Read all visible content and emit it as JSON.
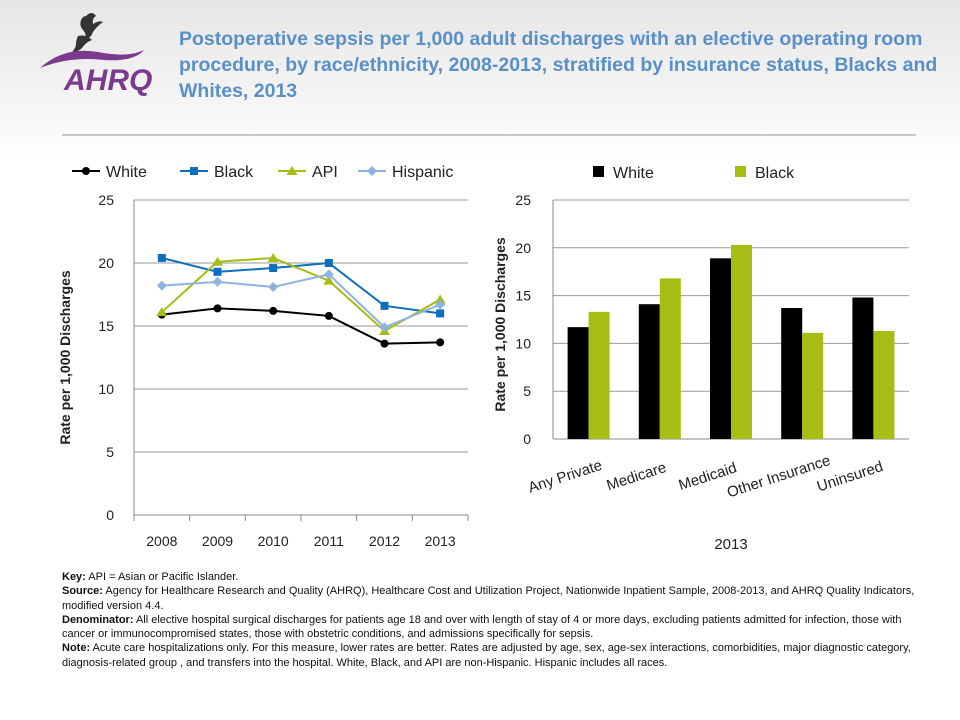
{
  "header": {
    "title": "Postoperative sepsis per 1,000 adult discharges with an elective operating room procedure, by race/ethnicity, 2008-2013, stratified by insurance status, Blacks and Whites, 2013",
    "logo_text": "AHRQ"
  },
  "colors": {
    "title": "#5a8fc8",
    "white_series": "#000000",
    "black_series": "#0b6fbb",
    "api_series": "#a7bd14",
    "hispanic_series": "#8fb3e0",
    "logo": "#7a3b8f"
  },
  "chart_data": [
    {
      "type": "line",
      "x": [
        "2008",
        "2009",
        "2010",
        "2011",
        "2012",
        "2013"
      ],
      "series": [
        {
          "name": "White",
          "marker": "circle",
          "values": [
            15.9,
            16.4,
            16.2,
            15.8,
            13.6,
            13.7
          ]
        },
        {
          "name": "Black",
          "marker": "square",
          "values": [
            20.4,
            19.3,
            19.6,
            20.0,
            16.6,
            16.0
          ]
        },
        {
          "name": "API",
          "marker": "triangle",
          "values": [
            16.1,
            20.1,
            20.4,
            18.6,
            14.6,
            17.1
          ]
        },
        {
          "name": "Hispanic",
          "marker": "diamond",
          "values": [
            18.2,
            18.5,
            18.1,
            19.1,
            14.9,
            16.7
          ]
        }
      ],
      "ylabel": "Rate per 1,000 Discharges",
      "ylim": [
        0,
        25
      ],
      "yticks": [
        "0",
        "5",
        "10",
        "15",
        "20",
        "25"
      ],
      "grid": true,
      "legend": "top"
    },
    {
      "type": "bar",
      "categories": [
        "Any Private",
        "Medicare",
        "Medicaid",
        "Other Insurance",
        "Uninsured"
      ],
      "series": [
        {
          "name": "White",
          "values": [
            11.7,
            14.1,
            18.9,
            13.7,
            14.8
          ]
        },
        {
          "name": "Black",
          "values": [
            13.3,
            16.8,
            20.3,
            11.1,
            11.3
          ]
        }
      ],
      "xlabel": "2013",
      "ylabel": "Rate per 1,000 Discharges",
      "ylim": [
        0,
        25
      ],
      "yticks": [
        "0",
        "5",
        "10",
        "15",
        "20",
        "25"
      ],
      "grid": true,
      "legend": "top"
    }
  ],
  "notes": {
    "key_label": "Key:",
    "key_text": " API = Asian or Pacific Islander.",
    "source_label": "Source:",
    "source_text": " Agency for Healthcare Research and Quality (AHRQ), Healthcare Cost and Utilization Project, Nationwide Inpatient Sample, 2008-2013, and AHRQ Quality Indicators, modified version 4.4.",
    "denominator_label": "Denominator:",
    "denominator_text": " All elective hospital surgical discharges for patients age 18 and over with length of stay of 4 or more days, excluding patients admitted for infection, those with cancer or immunocompromised states, those with obstetric conditions, and admissions specifically for sepsis.",
    "note_label": "Note:",
    "note_text": " Acute care hospitalizations only. For this measure, lower rates are better. Rates are adjusted by age, sex, age-sex interactions, comorbidities, major diagnostic category, diagnosis-related group , and transfers into the hospital. White, Black, and API are non-Hispanic. Hispanic includes all races."
  }
}
